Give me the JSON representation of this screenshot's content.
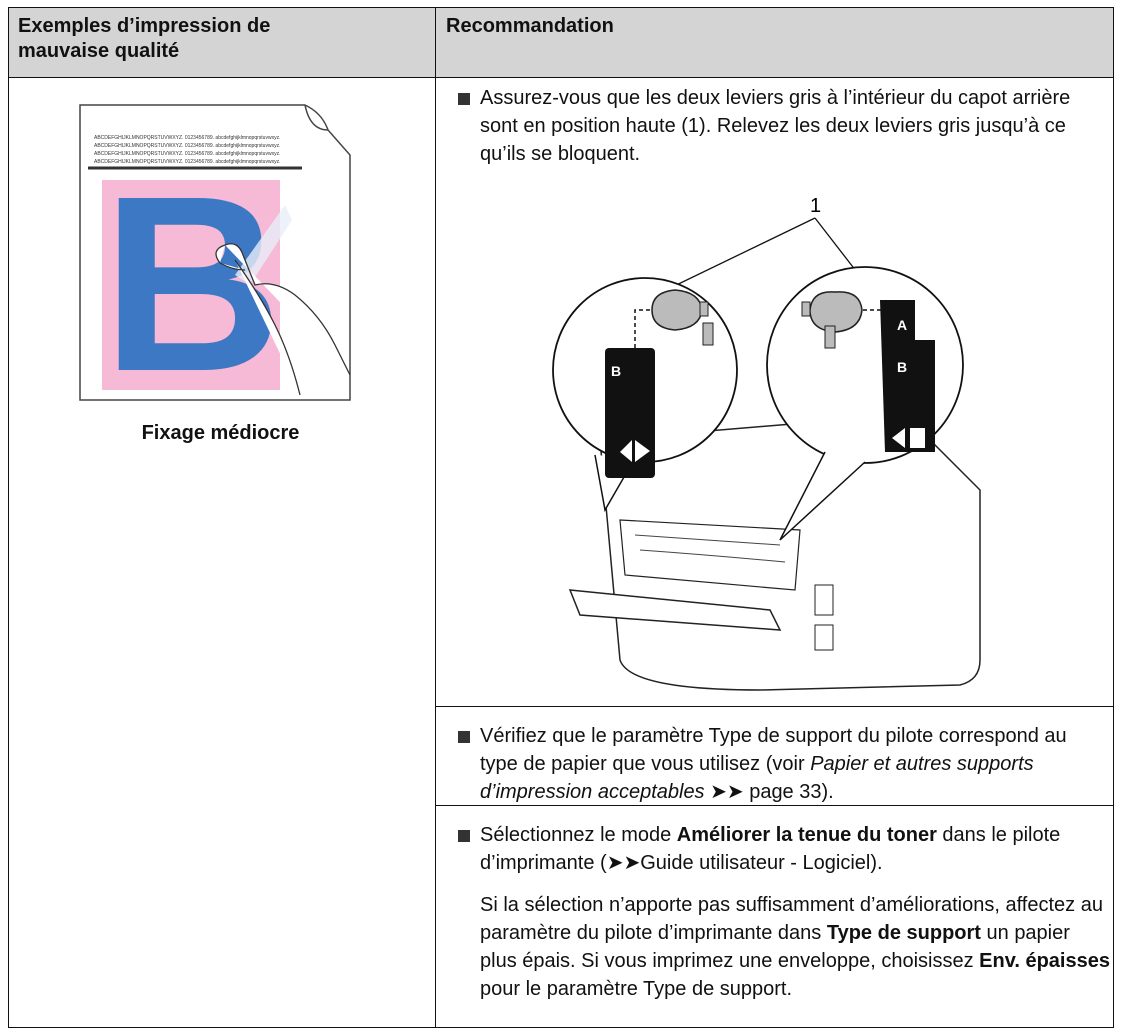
{
  "table": {
    "headers": [
      "Exemples d’impression de mauvaise qualité",
      "Recommandation"
    ],
    "example": {
      "sample_text": "ABCDEFGHIJKLMNOPQRSTUVWXYZ. 0123456789. abcdefghijklmnopqrstuvwxyz.",
      "sample_letter": "B",
      "caption": "Fixage médiocre"
    },
    "recommendations": [
      {
        "paragraphs": [
          [
            "Assurez-vous que les deux leviers gris à l’intérieur du capot arrière sont en position haute (1). Relevez les deux leviers gris jusqu’à ce qu’ils se bloquent."
          ]
        ],
        "figure": {
          "callout": "1",
          "lever_labels": [
            "B",
            "A",
            "B"
          ]
        }
      },
      {
        "paragraphs": [
          [
            "Vérifiez que le paramètre Type de support du pilote correspond au type de papier que vous utilisez (voir ",
            "Papier et autres supports d’impression acceptables",
            " ➤➤ page 33)."
          ]
        ]
      },
      {
        "paragraphs": [
          [
            "Sélectionnez le mode ",
            "Améliorer la tenue du toner",
            " dans le pilote d’imprimante (➤➤Guide utilisateur - Logiciel)."
          ],
          [
            "Si la sélection n’apporte pas suffisamment d’améliorations, affectez au paramètre du pilote d’imprimante dans ",
            "Type de support",
            " un papier plus épais. Si vous imprimez une enveloppe, choisissez ",
            "Env. épaisses",
            " pour le paramètre Type de support."
          ]
        ]
      }
    ]
  }
}
